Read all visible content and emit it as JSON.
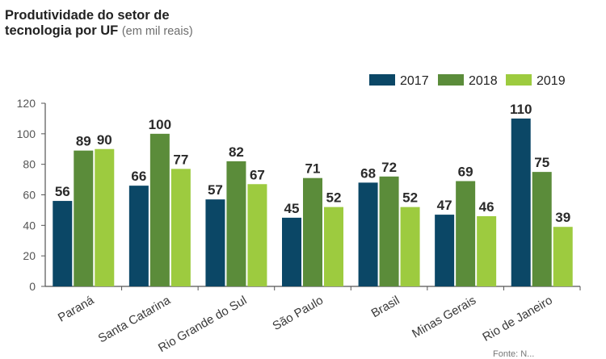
{
  "chart_data": {
    "type": "bar",
    "title": "Produtividade do setor de",
    "title_line2": "tecnologia por UF",
    "subtitle": "(em mil reais)",
    "categories": [
      "Paraná",
      "Santa Catarina",
      "Rio Grande do Sul",
      "São Paulo",
      "Brasil",
      "Minas Gerais",
      "Rio de Janeiro"
    ],
    "series": [
      {
        "name": "2017",
        "color": "#0b4766",
        "values": [
          56,
          66,
          57,
          45,
          68,
          47,
          110
        ]
      },
      {
        "name": "2018",
        "color": "#5b8c3a",
        "values": [
          89,
          100,
          82,
          71,
          72,
          69,
          75
        ]
      },
      {
        "name": "2019",
        "color": "#9dcb3f",
        "values": [
          90,
          77,
          67,
          52,
          52,
          46,
          39
        ]
      }
    ],
    "ylim": [
      0,
      120
    ],
    "yticks": [
      0,
      20,
      40,
      60,
      80,
      100,
      120
    ],
    "legend_position": "top-right",
    "grid": false,
    "source_text": "Fonte: N..."
  }
}
